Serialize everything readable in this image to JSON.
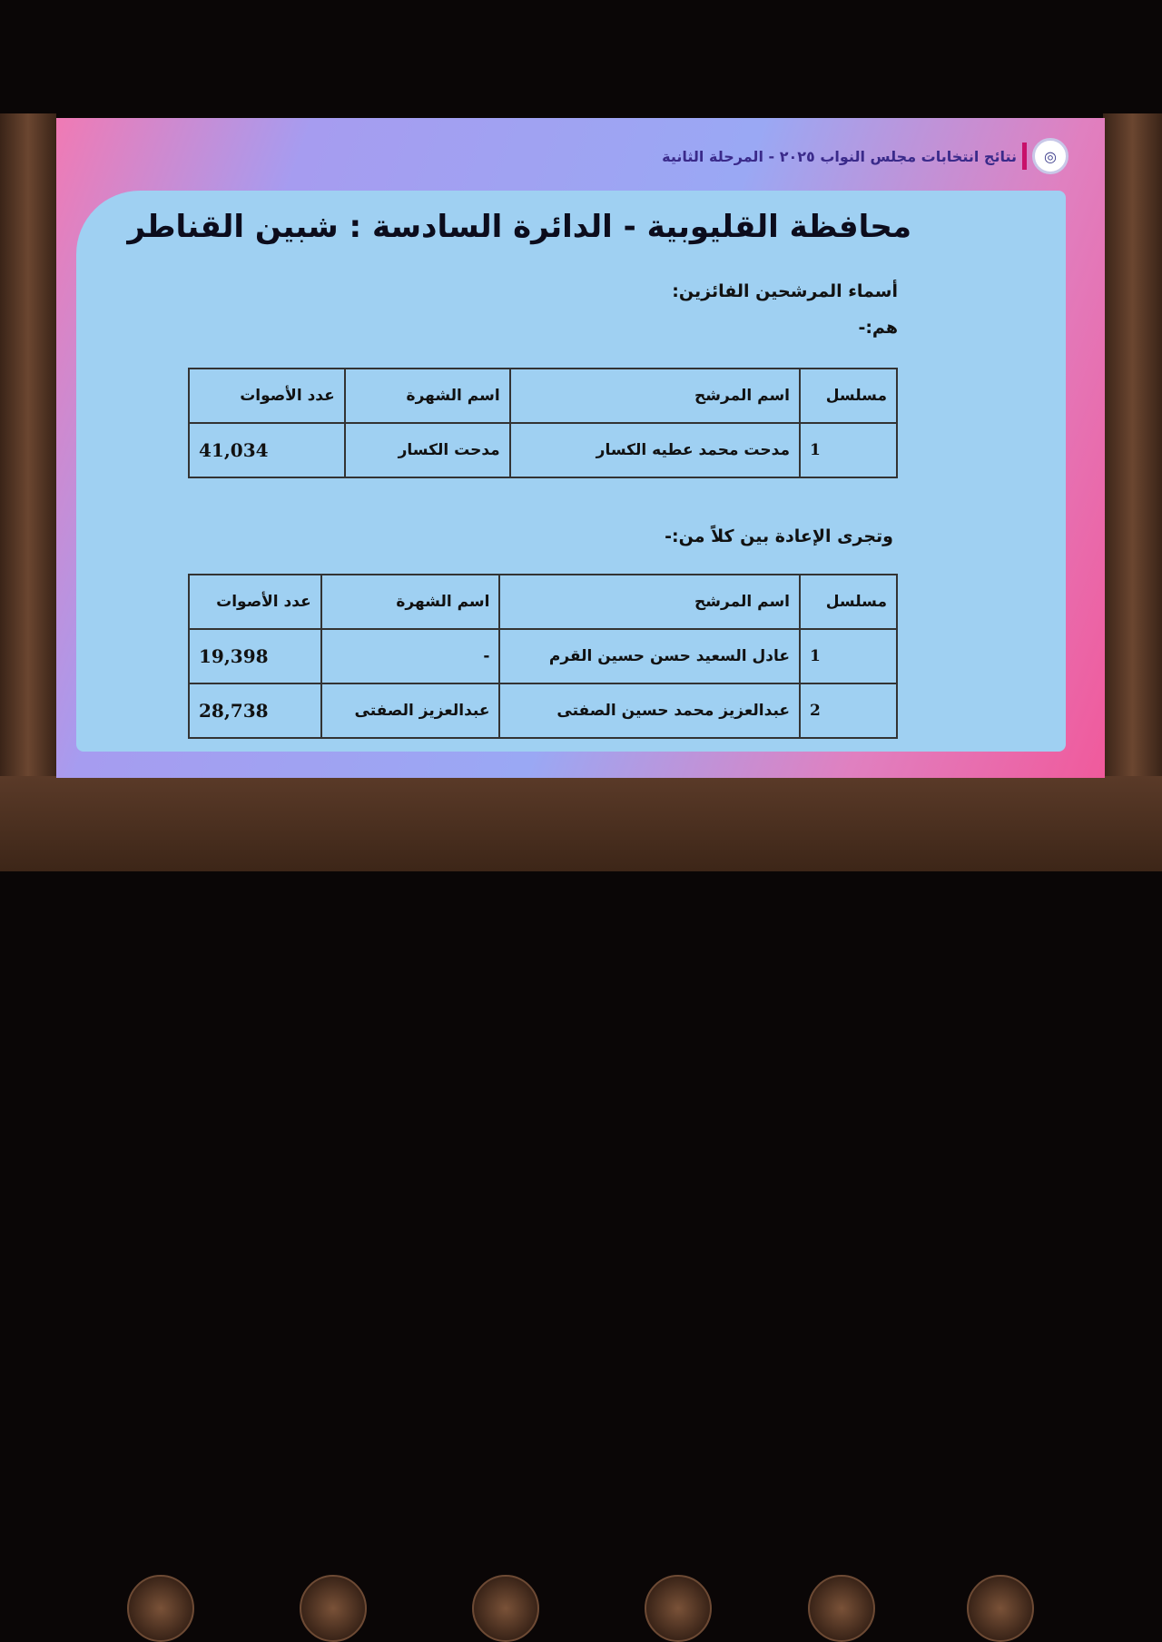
{
  "header": {
    "title": "نتائج انتخابات مجلس النواب ٢٠٢٥ - المرحلة الثانية",
    "logo_icon": "parliament-logo-icon"
  },
  "slide": {
    "title": "محافظة القليوبية - الدائرة السادسة : شبين القناطر",
    "winners_label": "أسماء المرشحين الفائزين:",
    "winners_sub": "هم:-",
    "runoff_label": "وتجرى الإعادة بين كلاً من:-",
    "columns": [
      "مسلسل",
      "اسم المرشح",
      "اسم الشهرة",
      "عدد الأصوات"
    ],
    "winners": [
      {
        "serial": "1",
        "name": "مدحت محمد عطيه الكسار",
        "nickname": "مدحت الكسار",
        "votes": "41,034"
      }
    ],
    "runoff": [
      {
        "serial": "1",
        "name": "عادل السعيد حسن حسين القرم",
        "nickname": "-",
        "votes": "19,398"
      },
      {
        "serial": "2",
        "name": "عبدالعزيز محمد حسين الصفتى",
        "nickname": "عبدالعزيز الصفتى",
        "votes": "28,738"
      }
    ]
  }
}
